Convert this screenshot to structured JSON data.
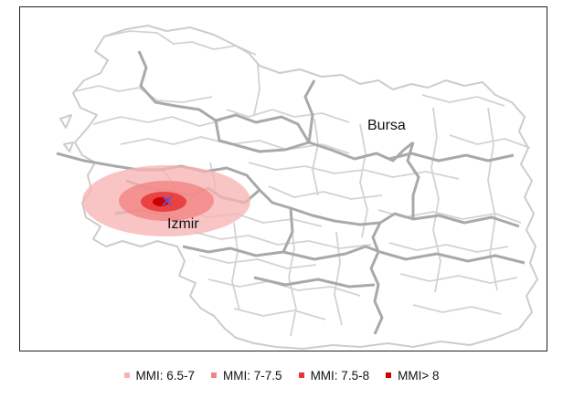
{
  "cities": [
    {
      "id": "bursa",
      "name": "Bursa"
    },
    {
      "id": "izmir",
      "name": "Izmir"
    }
  ],
  "epicenter": {
    "marker": "x-mark-icon",
    "color": "#5a5ae0"
  },
  "legend": {
    "items": [
      {
        "label": "MMI: 6.5-7",
        "color": "#f5b3b3"
      },
      {
        "label": "MMI: 7-7.5",
        "color": "#f08787"
      },
      {
        "label": "MMI: 7.5-8",
        "color": "#e83535"
      },
      {
        "label": "MMI> 8",
        "color": "#cc0000"
      }
    ]
  },
  "colors": {
    "province_border": "#a6a6a6",
    "district_border": "#cfcfcf",
    "frame": "#222222"
  }
}
